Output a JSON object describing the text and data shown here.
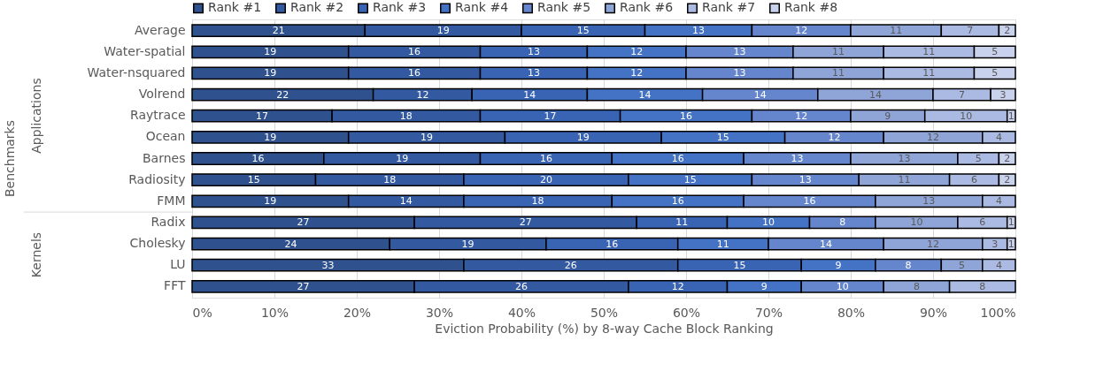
{
  "chart_data": {
    "type": "bar",
    "orientation": "horizontal",
    "stacked": true,
    "data_labels": true,
    "xlabel": "Eviction Probability (%) by 8-way Cache Block Ranking",
    "categories": [
      "Average",
      "Water-spatial",
      "Water-nsquared",
      "Volrend",
      "Raytrace",
      "Ocean",
      "Barnes",
      "Radiosity",
      "FMM",
      "Radix",
      "Cholesky",
      "LU",
      "FFT"
    ],
    "annotations": [
      "Benchmarks",
      "Applications",
      "Kernels"
    ],
    "series": [
      {
        "name": "Rank #1",
        "color": "#2f528f",
        "values": [
          21,
          19,
          19,
          22,
          17,
          19,
          16,
          15,
          19,
          27,
          24,
          33,
          27
        ]
      },
      {
        "name": "Rank #2",
        "color": "#335aa1",
        "values": [
          19,
          16,
          16,
          12,
          18,
          19,
          19,
          18,
          14,
          27,
          19,
          26,
          26
        ]
      },
      {
        "name": "Rank #3",
        "color": "#3963b3",
        "values": [
          15,
          13,
          13,
          14,
          17,
          19,
          16,
          20,
          18,
          11,
          16,
          15,
          12
        ]
      },
      {
        "name": "Rank #4",
        "color": "#4472c4",
        "values": [
          13,
          12,
          12,
          14,
          16,
          15,
          16,
          15,
          16,
          10,
          11,
          9,
          9
        ]
      },
      {
        "name": "Rank #5",
        "color": "#6586cd",
        "values": [
          12,
          13,
          13,
          14,
          12,
          12,
          13,
          13,
          16,
          8,
          14,
          8,
          10
        ]
      },
      {
        "name": "Rank #6",
        "color": "#8fa5d8",
        "values": [
          11,
          11,
          11,
          14,
          9,
          12,
          13,
          11,
          13,
          10,
          12,
          5,
          8
        ]
      },
      {
        "name": "Rank #7",
        "color": "#abbae2",
        "values": [
          7,
          11,
          11,
          7,
          10,
          4,
          5,
          6,
          4,
          6,
          3,
          4,
          8
        ]
      },
      {
        "name": "Rank #8",
        "color": "#c9d2ec",
        "values": [
          2,
          5,
          5,
          3,
          1,
          null,
          2,
          2,
          null,
          1,
          1,
          null,
          null
        ]
      }
    ],
    "xlim": [
      0,
      100
    ],
    "xticks": [
      {
        "value": 0,
        "label": "0%"
      },
      {
        "value": 10,
        "label": "10%"
      },
      {
        "value": 20,
        "label": "20%"
      },
      {
        "value": 30,
        "label": "30%"
      },
      {
        "value": 40,
        "label": "40%"
      },
      {
        "value": 50,
        "label": "50%"
      },
      {
        "value": 60,
        "label": "60%"
      },
      {
        "value": 70,
        "label": "70%"
      },
      {
        "value": 80,
        "label": "80%"
      },
      {
        "value": 90,
        "label": "90%"
      },
      {
        "value": 100,
        "label": "100%"
      }
    ],
    "grid": "x",
    "legend": "top"
  }
}
